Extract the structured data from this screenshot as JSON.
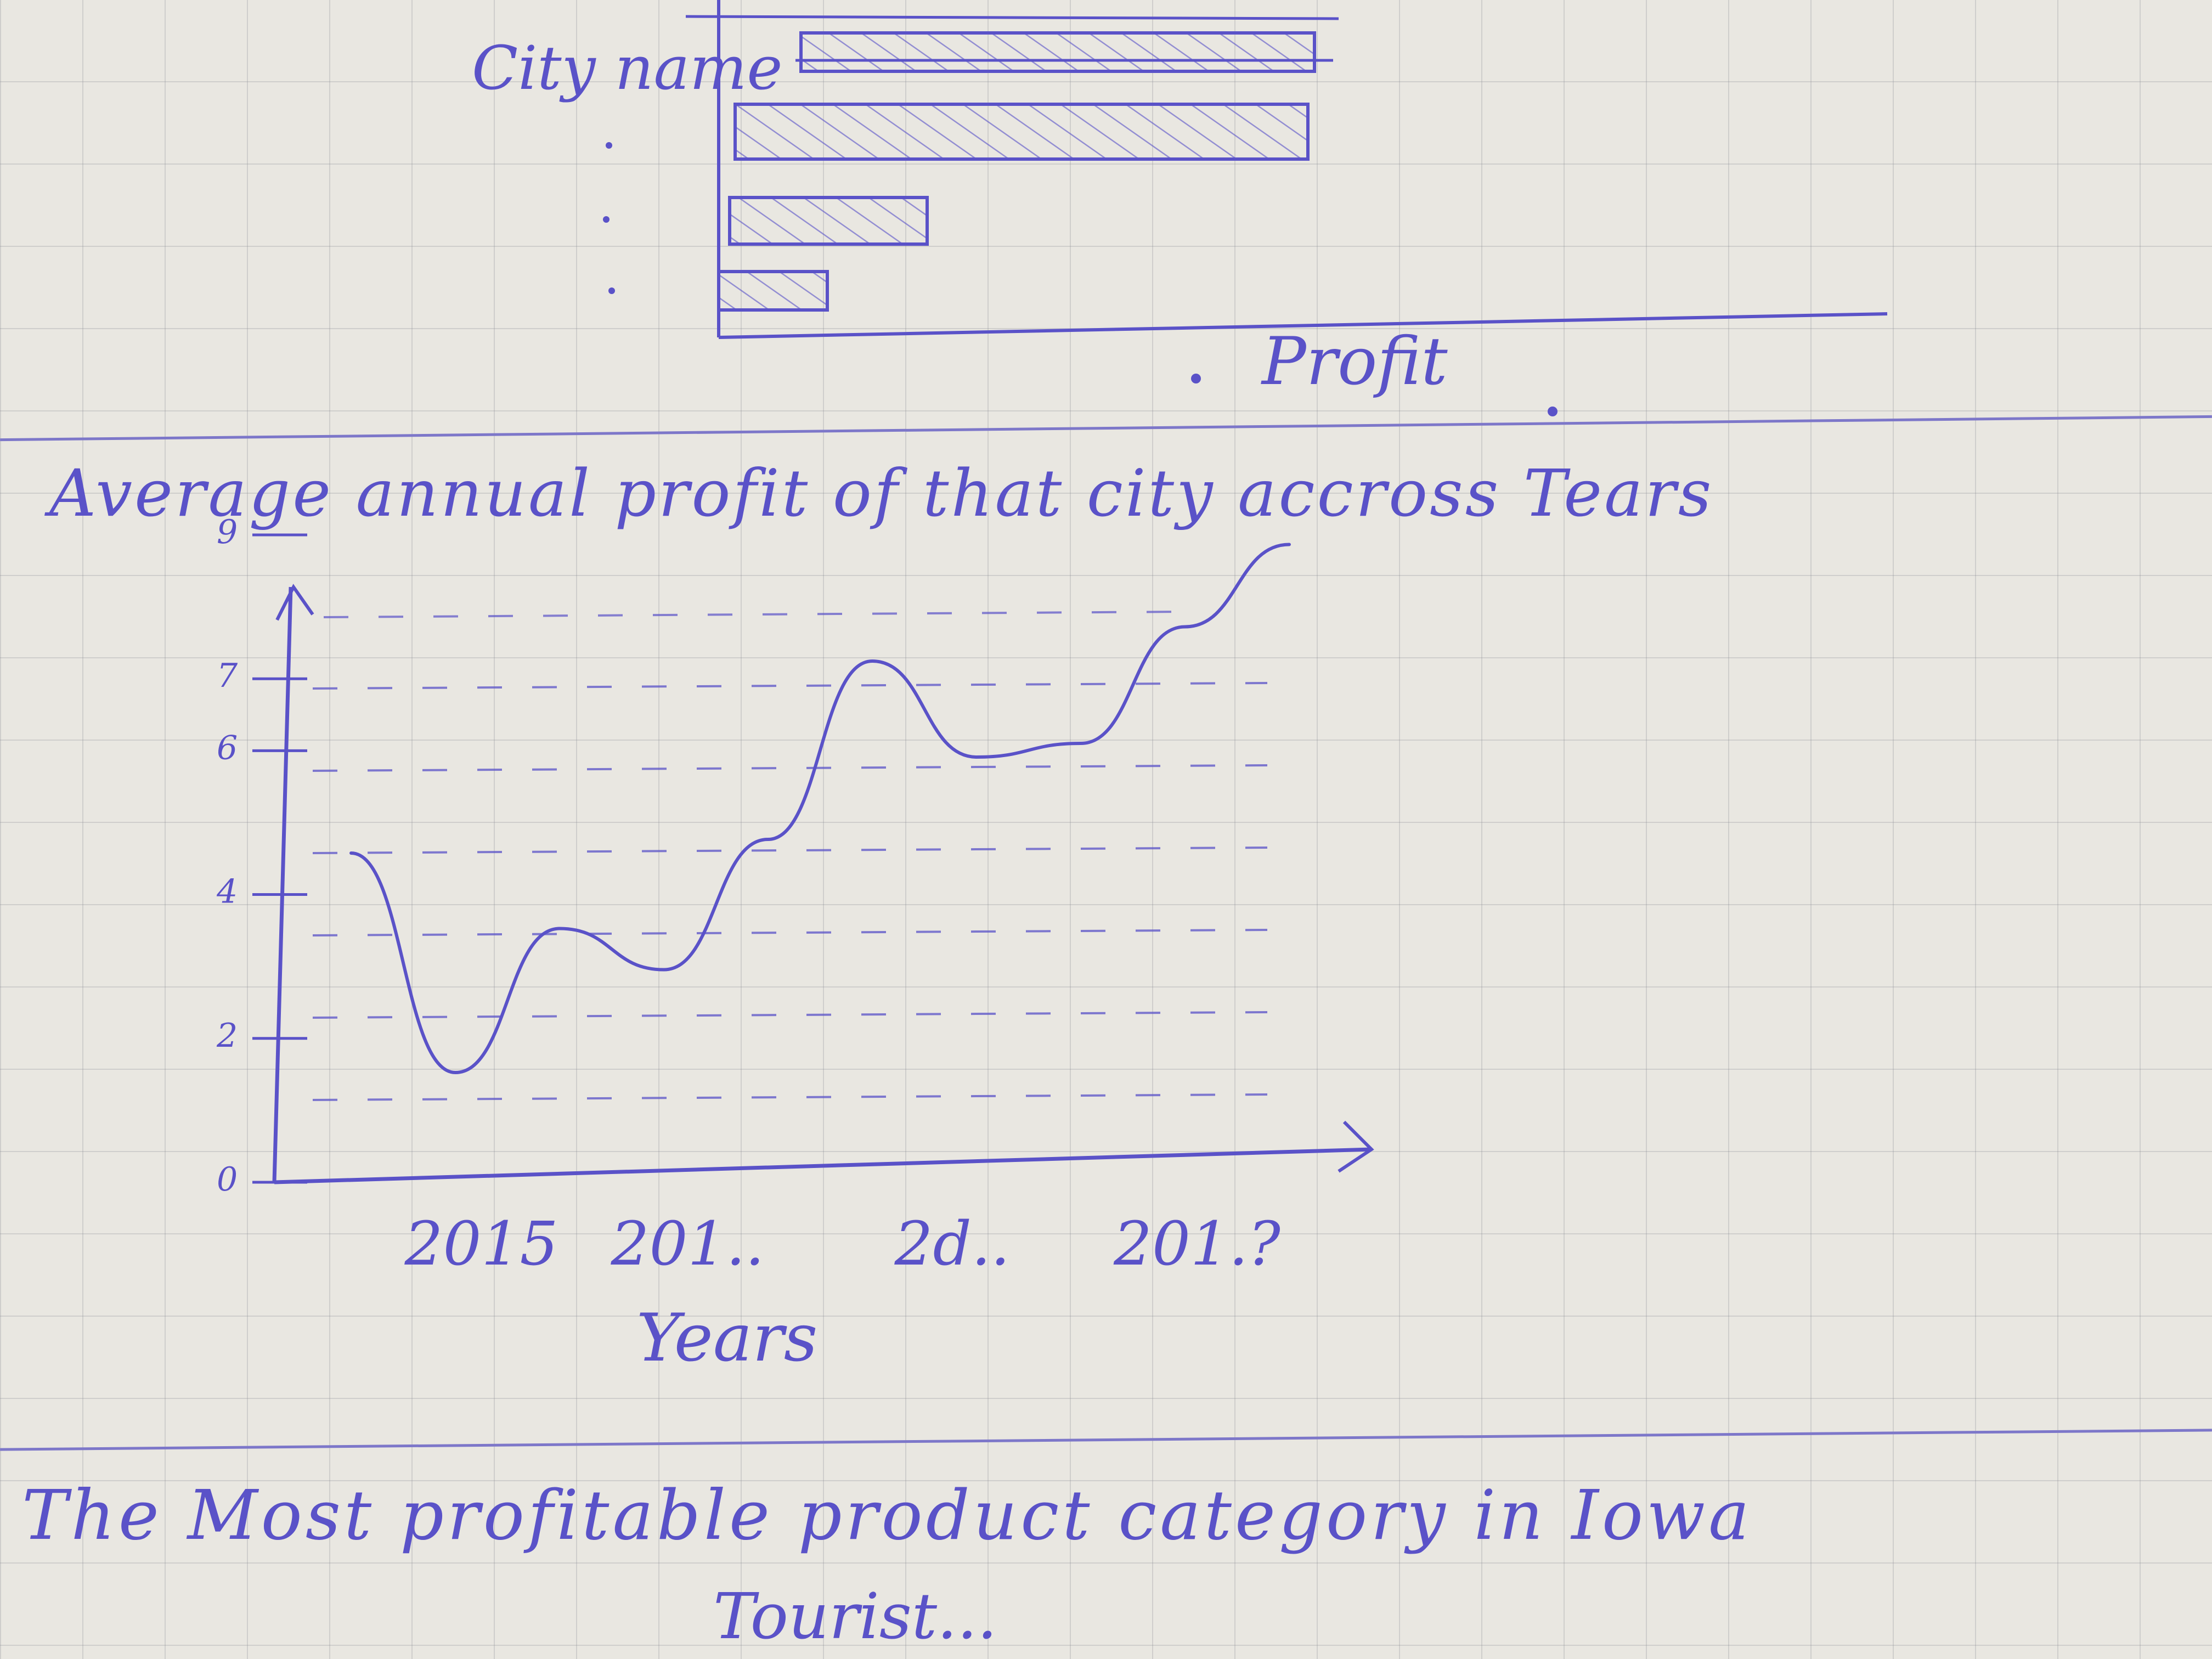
{
  "colors": {
    "ink": "#5a52c8",
    "paper": "#e9e7e1",
    "grid": "#a8a8b0"
  },
  "chart_data": [
    {
      "type": "bar",
      "orientation": "horizontal",
      "categories": [
        "City name",
        "",
        "",
        ""
      ],
      "values": [
        0.52,
        0.58,
        0.2,
        0.11
      ],
      "value_units": "relative",
      "xlabel": "Profit",
      "ylabel": "",
      "title": "",
      "grid": false,
      "note": ""
    },
    {
      "type": "line",
      "title": "Average annual profit of that city accross Tears",
      "title_display": "Average annual profit of that city accross Tears",
      "xlabel": "Years",
      "ylabel": "",
      "x": [
        "2015",
        "201..",
        "2d..",
        "201.?"
      ],
      "x_positions": [
        0.5,
        2.1,
        4.3,
        6.0
      ],
      "y_ticks": [
        "0",
        "2",
        "4",
        "6",
        "7",
        "9"
      ],
      "ylim": [
        0,
        9
      ],
      "series": [
        {
          "name": "",
          "points": [
            [
              0,
              4.8
            ],
            [
              1,
              1.6
            ],
            [
              2,
              3.7
            ],
            [
              3,
              3.1
            ],
            [
              4,
              5.0
            ],
            [
              5,
              7.6
            ],
            [
              6,
              6.2
            ],
            [
              7,
              6.4
            ],
            [
              8,
              8.1
            ],
            [
              9,
              9.3
            ]
          ]
        }
      ],
      "grid": true
    }
  ],
  "bottom_text": {
    "heading": "The Most profitable product category in Iowa",
    "subline": "Tourist..."
  }
}
